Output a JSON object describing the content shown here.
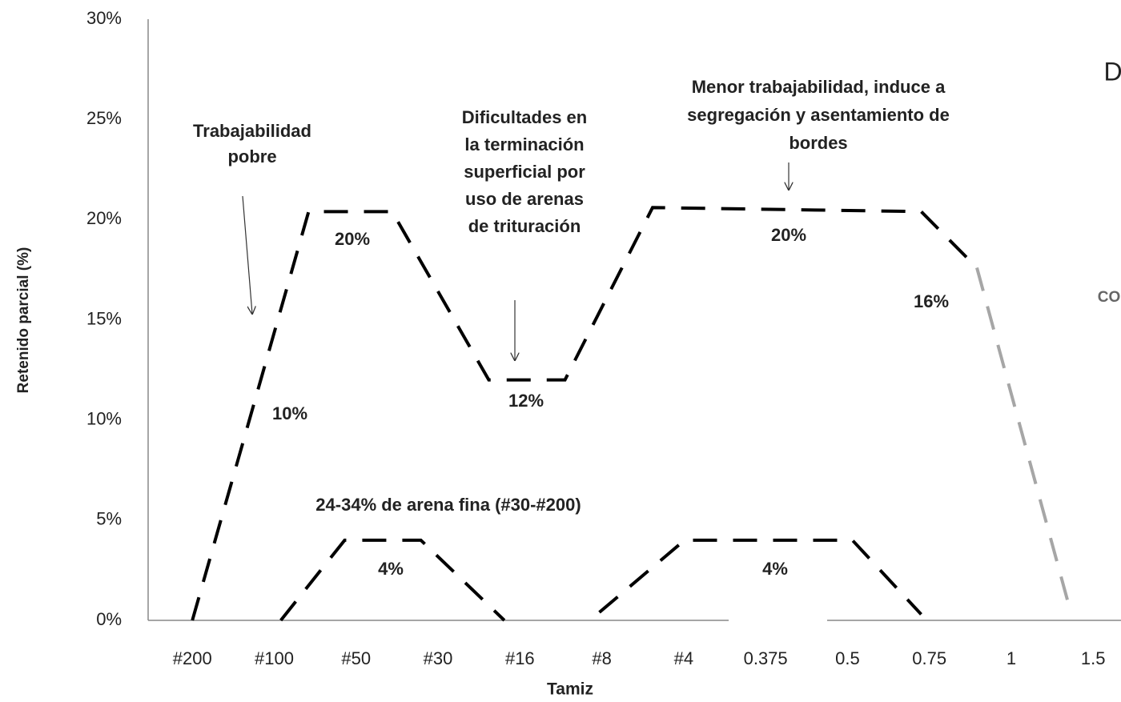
{
  "chart_data": {
    "type": "line",
    "ylabel": "Retenido parcial (%)",
    "xlabel": "Tamiz",
    "xlim": [
      -0.54,
      11.34
    ],
    "ylim": [
      0,
      30
    ],
    "yticks": [
      {
        "value": 0,
        "label": "0%"
      },
      {
        "value": 5,
        "label": "5%"
      },
      {
        "value": 10,
        "label": "10%"
      },
      {
        "value": 15,
        "label": "15%"
      },
      {
        "value": 20,
        "label": "20%"
      },
      {
        "value": 25,
        "label": "25%"
      },
      {
        "value": 30,
        "label": "30%"
      }
    ],
    "xticks": [
      {
        "value": 0,
        "label": "#200"
      },
      {
        "value": 1,
        "label": "#100"
      },
      {
        "value": 2,
        "label": "#50"
      },
      {
        "value": 3,
        "label": "#30"
      },
      {
        "value": 4,
        "label": "#16"
      },
      {
        "value": 5,
        "label": "#8"
      },
      {
        "value": 6,
        "label": "#4"
      },
      {
        "value": 7,
        "label": "0.375"
      },
      {
        "value": 8,
        "label": "0.5"
      },
      {
        "value": 9,
        "label": "0.75"
      },
      {
        "value": 10,
        "label": "1"
      },
      {
        "value": 11,
        "label": "1.5"
      }
    ],
    "grid": false,
    "series": [
      {
        "color": "#000000",
        "x": [
          0,
          1.42,
          2.44,
          3.62,
          4.55,
          5.62,
          8.9,
          9.58
        ],
        "values": [
          0,
          20.4,
          20.4,
          12,
          12,
          20.6,
          20.4,
          17.6
        ]
      },
      {
        "color": "#a6a6a6",
        "x": [
          9.58,
          10.7
        ],
        "values": [
          17.6,
          0.8
        ]
      },
      {
        "color": "#000000",
        "x": [
          1.08,
          1.86,
          2.79,
          3.81,
          null,
          4.97,
          6.01,
          8.06,
          8.9
        ],
        "values": [
          0,
          4,
          4,
          0,
          null,
          0.4,
          4,
          4,
          0.3
        ]
      }
    ],
    "annotations": [
      {
        "lines": [
          "Trabajabilidad",
          "pobre"
        ]
      },
      {
        "lines": [
          "Dificultades en",
          "la terminación",
          "superficial por",
          "uso de arenas",
          "de trituración"
        ]
      },
      {
        "lines": [
          "Menor trabajabilidad, induce a",
          "segregación y asentamiento de",
          "bordes"
        ]
      },
      {
        "lines": [
          "24-34% de arena fina (#30-#200)"
        ]
      },
      {
        "lines": [
          "20%"
        ]
      },
      {
        "lines": [
          "20%"
        ]
      },
      {
        "lines": [
          "12%"
        ]
      },
      {
        "lines": [
          "10%"
        ]
      },
      {
        "lines": [
          "16%"
        ]
      },
      {
        "lines": [
          "4%"
        ]
      },
      {
        "lines": [
          "4%"
        ]
      },
      {
        "lines": [
          "D"
        ]
      },
      {
        "lines": [
          "CO"
        ]
      }
    ]
  }
}
